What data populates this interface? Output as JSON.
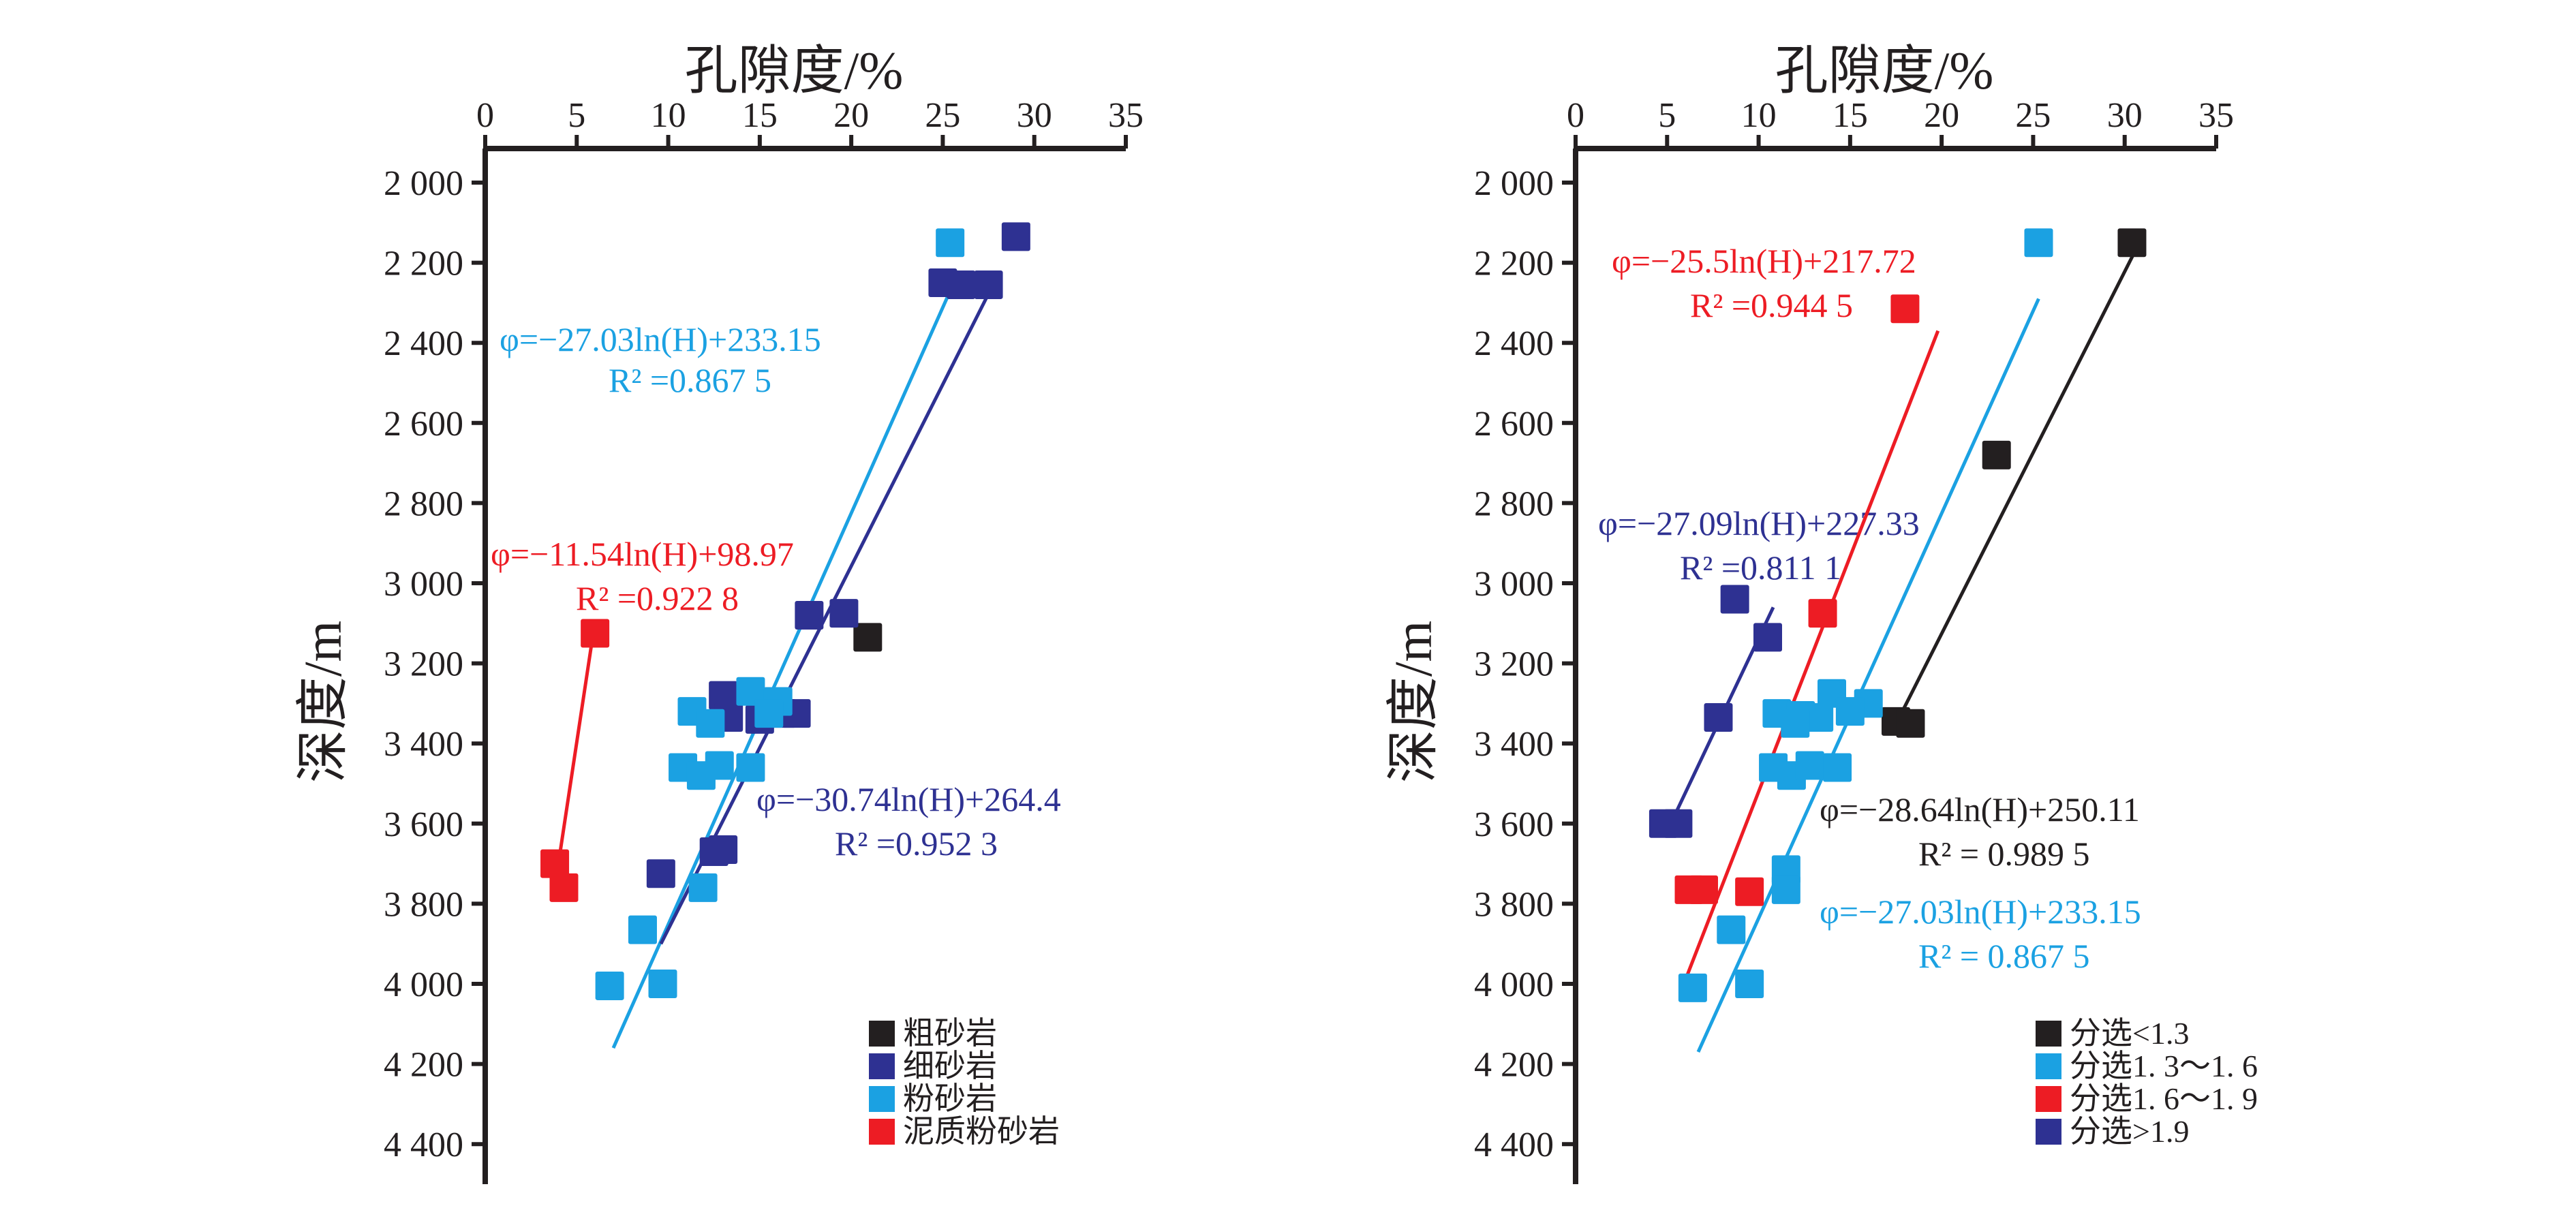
{
  "chart_data": [
    {
      "type": "scatter",
      "panel": "left",
      "title": "",
      "xlabel": "孔隙度/%",
      "ylabel": "深度/m",
      "xlim": [
        0,
        35
      ],
      "ylim": [
        2000,
        4500
      ],
      "xticks": [
        "0",
        "5",
        "10",
        "15",
        "20",
        "25",
        "30",
        "35"
      ],
      "yticks": [
        "2 000",
        "2 200",
        "2 400",
        "2 600",
        "2 800",
        "3 000",
        "3 200",
        "3 400",
        "3 600",
        "3 800",
        "4 000",
        "4 200",
        "4 400"
      ],
      "x_axis_position": "top",
      "legend_position": "bottom-right",
      "series": [
        {
          "name": "粗砂岩",
          "color": "#231f20",
          "points": [
            [
              20.9,
              3135
            ]
          ]
        },
        {
          "name": "细砂岩",
          "color": "#2e3192",
          "points": [
            [
              29.0,
              2135
            ],
            [
              25.0,
              2250
            ],
            [
              26.0,
              2255
            ],
            [
              27.5,
              2255
            ],
            [
              17.7,
              3080
            ],
            [
              19.6,
              3075
            ],
            [
              13.0,
              3280
            ],
            [
              13.3,
              3335
            ],
            [
              15.0,
              3340
            ],
            [
              16.2,
              3325
            ],
            [
              17.0,
              3325
            ],
            [
              12.5,
              3670
            ],
            [
              13.0,
              3665
            ],
            [
              9.6,
              3725
            ]
          ]
        },
        {
          "name": "粉砂岩",
          "color": "#1ba1e2",
          "points": [
            [
              25.4,
              2150
            ],
            [
              14.5,
              3270
            ],
            [
              16.0,
              3295
            ],
            [
              11.3,
              3320
            ],
            [
              12.3,
              3350
            ],
            [
              15.5,
              3325
            ],
            [
              10.8,
              3460
            ],
            [
              11.8,
              3480
            ],
            [
              12.8,
              3455
            ],
            [
              14.5,
              3460
            ],
            [
              11.9,
              3760
            ],
            [
              8.6,
              3865
            ],
            [
              6.8,
              4005
            ],
            [
              9.7,
              4000
            ]
          ]
        },
        {
          "name": "泥质粉砂岩",
          "color": "#ed1c24",
          "points": [
            [
              6.0,
              3125
            ],
            [
              3.8,
              3700
            ],
            [
              4.3,
              3760
            ]
          ]
        }
      ],
      "trendlines": [
        {
          "series": "粉砂岩",
          "color": "#1ba1e2",
          "x_at_ymin": 25.6,
          "y_min": 2250,
          "x_at_ymax": 7.0,
          "y_max": 4160
        },
        {
          "series": "细砂岩",
          "color": "#2e3192",
          "x_at_ymin": 27.8,
          "y_min": 2250,
          "x_at_ymax": 9.6,
          "y_max": 3900
        },
        {
          "series": "泥质粉砂岩",
          "color": "#ed1c24",
          "x_at_ymin": 5.9,
          "y_min": 3125,
          "x_at_ymax": 3.8,
          "y_max": 3760
        }
      ],
      "annotations": [
        {
          "color": "#1ba1e2",
          "eq": "φ=−27.03ln(H)+233.15",
          "r2": "R² =0.867 5"
        },
        {
          "color": "#ed1c24",
          "eq": "φ=−11.54ln(H)+98.97",
          "r2": "R² =0.922 8"
        },
        {
          "color": "#2e3192",
          "eq": "φ=−30.74ln(H)+264.4",
          "r2": "R² =0.952 3"
        }
      ]
    },
    {
      "type": "scatter",
      "panel": "right",
      "title": "",
      "xlabel": "孔隙度/%",
      "ylabel": "深度/m",
      "xlim": [
        0,
        35
      ],
      "ylim": [
        2000,
        4500
      ],
      "xticks": [
        "0",
        "5",
        "10",
        "15",
        "20",
        "25",
        "30",
        "35"
      ],
      "yticks": [
        "2 000",
        "2 200",
        "2 400",
        "2 600",
        "2 800",
        "3 000",
        "3 200",
        "3 400",
        "3 600",
        "3 800",
        "4 000",
        "4 200",
        "4 400"
      ],
      "x_axis_position": "top",
      "legend_position": "bottom-right",
      "series": [
        {
          "name": "分选<1.3",
          "color": "#231f20",
          "points": [
            [
              30.4,
              2150
            ],
            [
              23.0,
              2680
            ],
            [
              17.5,
              3345
            ],
            [
              18.3,
              3350
            ]
          ]
        },
        {
          "name": "分选1. 3～1. 6",
          "color": "#1ba1e2",
          "points": [
            [
              25.3,
              2150
            ],
            [
              14.0,
              3275
            ],
            [
              11.0,
              3325
            ],
            [
              12.3,
              3330
            ],
            [
              13.3,
              3335
            ],
            [
              16.0,
              3300
            ],
            [
              15.0,
              3320
            ],
            [
              12.0,
              3350
            ],
            [
              10.8,
              3460
            ],
            [
              11.8,
              3480
            ],
            [
              12.8,
              3455
            ],
            [
              14.3,
              3460
            ],
            [
              11.5,
              3715
            ],
            [
              11.5,
              3765
            ],
            [
              8.5,
              3865
            ],
            [
              6.4,
              4010
            ],
            [
              9.5,
              4000
            ]
          ]
        },
        {
          "name": "分选1. 6～1. 9",
          "color": "#ed1c24",
          "points": [
            [
              18.0,
              2315
            ],
            [
              13.5,
              3075
            ],
            [
              6.2,
              3765
            ],
            [
              7.0,
              3765
            ],
            [
              9.5,
              3770
            ]
          ]
        },
        {
          "name": "分选>1.9",
          "color": "#2e3192",
          "points": [
            [
              8.7,
              3040
            ],
            [
              10.5,
              3135
            ],
            [
              7.8,
              3335
            ],
            [
              4.8,
              3600
            ],
            [
              5.6,
              3600
            ]
          ]
        }
      ],
      "trendlines": [
        {
          "series": "分选<1.3",
          "color": "#231f20",
          "x_at_ymin": 30.8,
          "y_min": 2150,
          "x_at_ymax": 17.3,
          "y_max": 3370
        },
        {
          "series": "分选1. 3～1. 6",
          "color": "#1ba1e2",
          "x_at_ymin": 25.3,
          "y_min": 2290,
          "x_at_ymax": 6.7,
          "y_max": 4170
        },
        {
          "series": "分选1. 6～1. 9",
          "color": "#ed1c24",
          "x_at_ymin": 19.8,
          "y_min": 2370,
          "x_at_ymax": 6.0,
          "y_max": 3990
        },
        {
          "series": "分选>1.9",
          "color": "#2e3192",
          "x_at_ymin": 10.8,
          "y_min": 3060,
          "x_at_ymax": 5.2,
          "y_max": 3600
        }
      ],
      "annotations": [
        {
          "color": "#ed1c24",
          "eq": "φ=−25.5ln(H)+217.72",
          "r2": "R² =0.944 5"
        },
        {
          "color": "#2e3192",
          "eq": "φ=−27.09ln(H)+227.33",
          "r2": "R² =0.811 1"
        },
        {
          "color": "#231f20",
          "eq": "φ=−28.64ln(H)+250.11",
          "r2": "R²  =  0.989 5"
        },
        {
          "color": "#1ba1e2",
          "eq": "φ=−27.03ln(H)+233.15",
          "r2": "R²  =  0.867 5"
        }
      ]
    }
  ]
}
